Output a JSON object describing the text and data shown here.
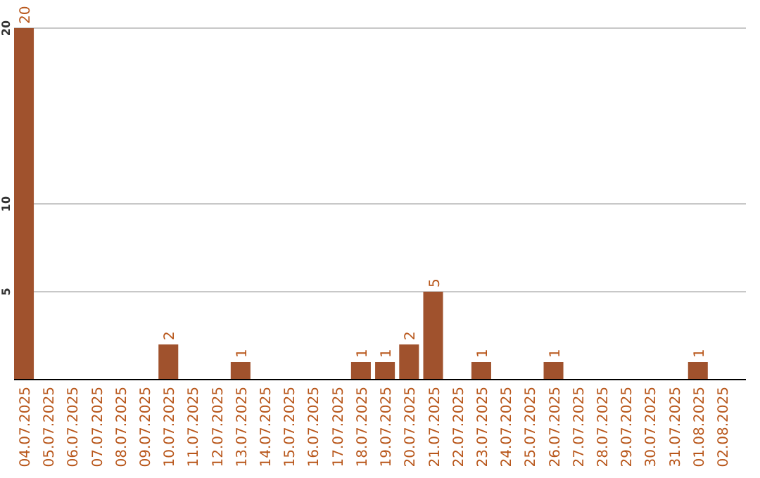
{
  "chart_data": {
    "type": "bar",
    "categories": [
      "04.07.2025",
      "05.07.2025",
      "06.07.2025",
      "07.07.2025",
      "08.07.2025",
      "09.07.2025",
      "10.07.2025",
      "11.07.2025",
      "12.07.2025",
      "13.07.2025",
      "14.07.2025",
      "15.07.2025",
      "16.07.2025",
      "17.07.2025",
      "18.07.2025",
      "19.07.2025",
      "20.07.2025",
      "21.07.2025",
      "22.07.2025",
      "23.07.2025",
      "24.07.2025",
      "25.07.2025",
      "26.07.2025",
      "27.07.2025",
      "28.07.2025",
      "29.07.2025",
      "30.07.2025",
      "31.07.2025",
      "01.08.2025",
      "02.08.2025"
    ],
    "values": [
      20,
      0,
      0,
      0,
      0,
      0,
      2,
      0,
      0,
      1,
      0,
      0,
      0,
      0,
      1,
      1,
      2,
      5,
      0,
      1,
      0,
      0,
      1,
      0,
      0,
      0,
      0,
      0,
      1,
      0
    ],
    "value_labels": [
      "20",
      null,
      null,
      null,
      null,
      null,
      "2",
      null,
      null,
      "1",
      null,
      null,
      null,
      null,
      "1",
      "1",
      "2",
      "5",
      null,
      "1",
      null,
      null,
      "1",
      null,
      null,
      null,
      null,
      null,
      "1",
      null
    ],
    "color": "#a0522d",
    "ylim": [
      0,
      20
    ],
    "yticks": [
      5,
      10,
      20
    ],
    "grid": "y"
  }
}
